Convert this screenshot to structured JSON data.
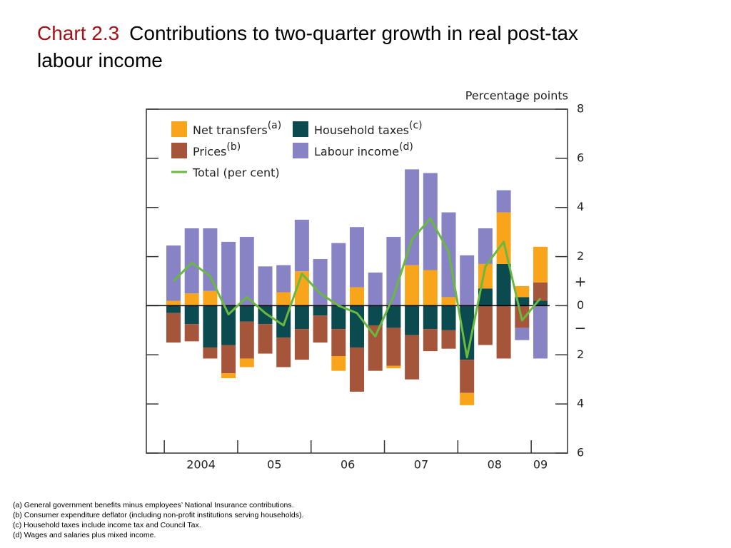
{
  "chart_data": {
    "type": "bar",
    "title_label": "Chart 2.3",
    "title": "Contributions to two-quarter growth in real post-tax labour income",
    "y_axis_label": "Percentage points",
    "annotations": [
      "+",
      "−"
    ],
    "categories": [
      "2004",
      null,
      null,
      null,
      "05",
      null,
      null,
      null,
      "06",
      null,
      null,
      null,
      "07",
      null,
      null,
      null,
      "08",
      null,
      null,
      null,
      "09"
    ],
    "ylim": [
      -6,
      8
    ],
    "yticks": [
      {
        "value": -6,
        "label": "6"
      },
      {
        "value": -4,
        "label": "4"
      },
      {
        "value": -2,
        "label": "2"
      },
      0,
      2,
      4,
      6,
      8
    ],
    "series": [
      {
        "name": "Household taxes",
        "note": "(c)",
        "color": "#0b4a4f",
        "values": [
          -0.3,
          -0.75,
          -1.7,
          -1.6,
          -0.65,
          -0.75,
          -1.3,
          -0.95,
          -0.4,
          -0.95,
          -1.7,
          -0.8,
          -0.9,
          -1.2,
          -0.95,
          -1.0,
          -2.2,
          0.7,
          1.7,
          0.35,
          0.2
        ]
      },
      {
        "name": "Prices",
        "note": "(b)",
        "color": "#a5553a",
        "values": [
          -1.2,
          -0.7,
          -0.45,
          -1.15,
          -1.5,
          -1.2,
          -1.2,
          -1.25,
          -1.1,
          -1.1,
          -1.8,
          -1.85,
          -1.55,
          -1.8,
          -0.9,
          -0.75,
          -1.35,
          -1.6,
          -2.15,
          -0.9,
          0.75
        ]
      },
      {
        "name": "Net transfers",
        "note": "(a)",
        "color": "#f9a51b",
        "values": [
          0.2,
          0.5,
          0.6,
          -0.2,
          -0.35,
          0,
          0.55,
          1.4,
          0,
          -0.6,
          0.75,
          0,
          -0.1,
          1.65,
          1.45,
          0.35,
          -0.5,
          1.0,
          2.1,
          0.45,
          1.45
        ]
      },
      {
        "name": "Labour income",
        "note": "(d)",
        "color": "#8783c4",
        "values": [
          2.25,
          2.65,
          2.55,
          2.6,
          2.8,
          1.6,
          1.1,
          2.1,
          1.9,
          2.55,
          2.45,
          1.35,
          2.8,
          3.9,
          3.95,
          3.45,
          2.05,
          1.45,
          0.9,
          -0.5,
          -2.15
        ]
      }
    ],
    "line": {
      "name": "Total (per cent)",
      "color": "#6ab93f",
      "values": [
        1.0,
        1.75,
        1.2,
        -0.35,
        0.35,
        -0.3,
        -0.8,
        1.3,
        0.5,
        0.0,
        -0.3,
        -1.25,
        0.4,
        2.7,
        3.55,
        2.2,
        -2.1,
        1.6,
        2.6,
        -0.6,
        0.3
      ]
    },
    "footnotes": [
      "(a) General government benefits minus employees’ National Insurance contributions.",
      "(b) Consumer expenditure deflator (including non-profit institutions serving households).",
      "(c) Household taxes include income tax and Council Tax.",
      "(d) Wages and salaries plus mixed income."
    ]
  }
}
